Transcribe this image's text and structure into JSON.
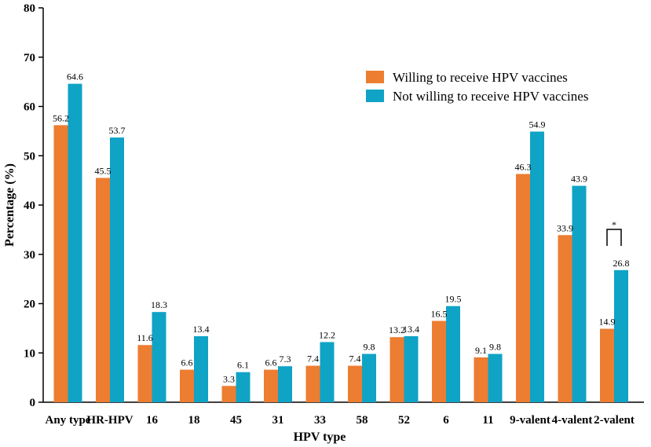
{
  "chart_data": {
    "type": "bar",
    "title": "",
    "xlabel": "HPV type",
    "ylabel": "Percentage (%)",
    "ylim": [
      0,
      80
    ],
    "yticks": [
      0,
      10,
      20,
      30,
      40,
      50,
      60,
      70,
      80
    ],
    "categories": [
      "Any type",
      "HR-HPV",
      "16",
      "18",
      "45",
      "31",
      "33",
      "58",
      "52",
      "6",
      "11",
      "9-valent",
      "4-valent",
      "2-valent"
    ],
    "series": [
      {
        "name": "Willing to receive HPV vaccines",
        "color": "#ED7D31",
        "values": [
          56.2,
          45.5,
          11.6,
          6.6,
          3.3,
          6.6,
          7.4,
          7.4,
          13.2,
          16.5,
          9.1,
          46.3,
          33.9,
          14.9
        ],
        "labels": [
          "56.2",
          "45.5",
          "11.6",
          "6.6",
          "3.3",
          "6.6",
          "7.4",
          "7.4",
          "13.2",
          "16.5",
          "9.1",
          "46.3",
          "33.9",
          "14.9"
        ]
      },
      {
        "name": "Not willing to receive HPV vaccines",
        "color": "#0FA3C6",
        "values": [
          64.6,
          53.7,
          18.3,
          13.4,
          6.1,
          7.3,
          12.2,
          9.8,
          13.4,
          19.5,
          9.8,
          54.9,
          43.9,
          26.8
        ],
        "labels": [
          "64.6",
          "53.7",
          "18.3",
          "13.4",
          "6.1",
          "7.3",
          "12.2",
          "9.8",
          "13.4",
          "19.5",
          "9.8",
          "54.9",
          "43.9",
          "26.8"
        ]
      }
    ],
    "legend_position": "top-right",
    "annotations": [
      {
        "category": "2-valent",
        "text": "*",
        "type": "significance-bracket"
      }
    ]
  }
}
